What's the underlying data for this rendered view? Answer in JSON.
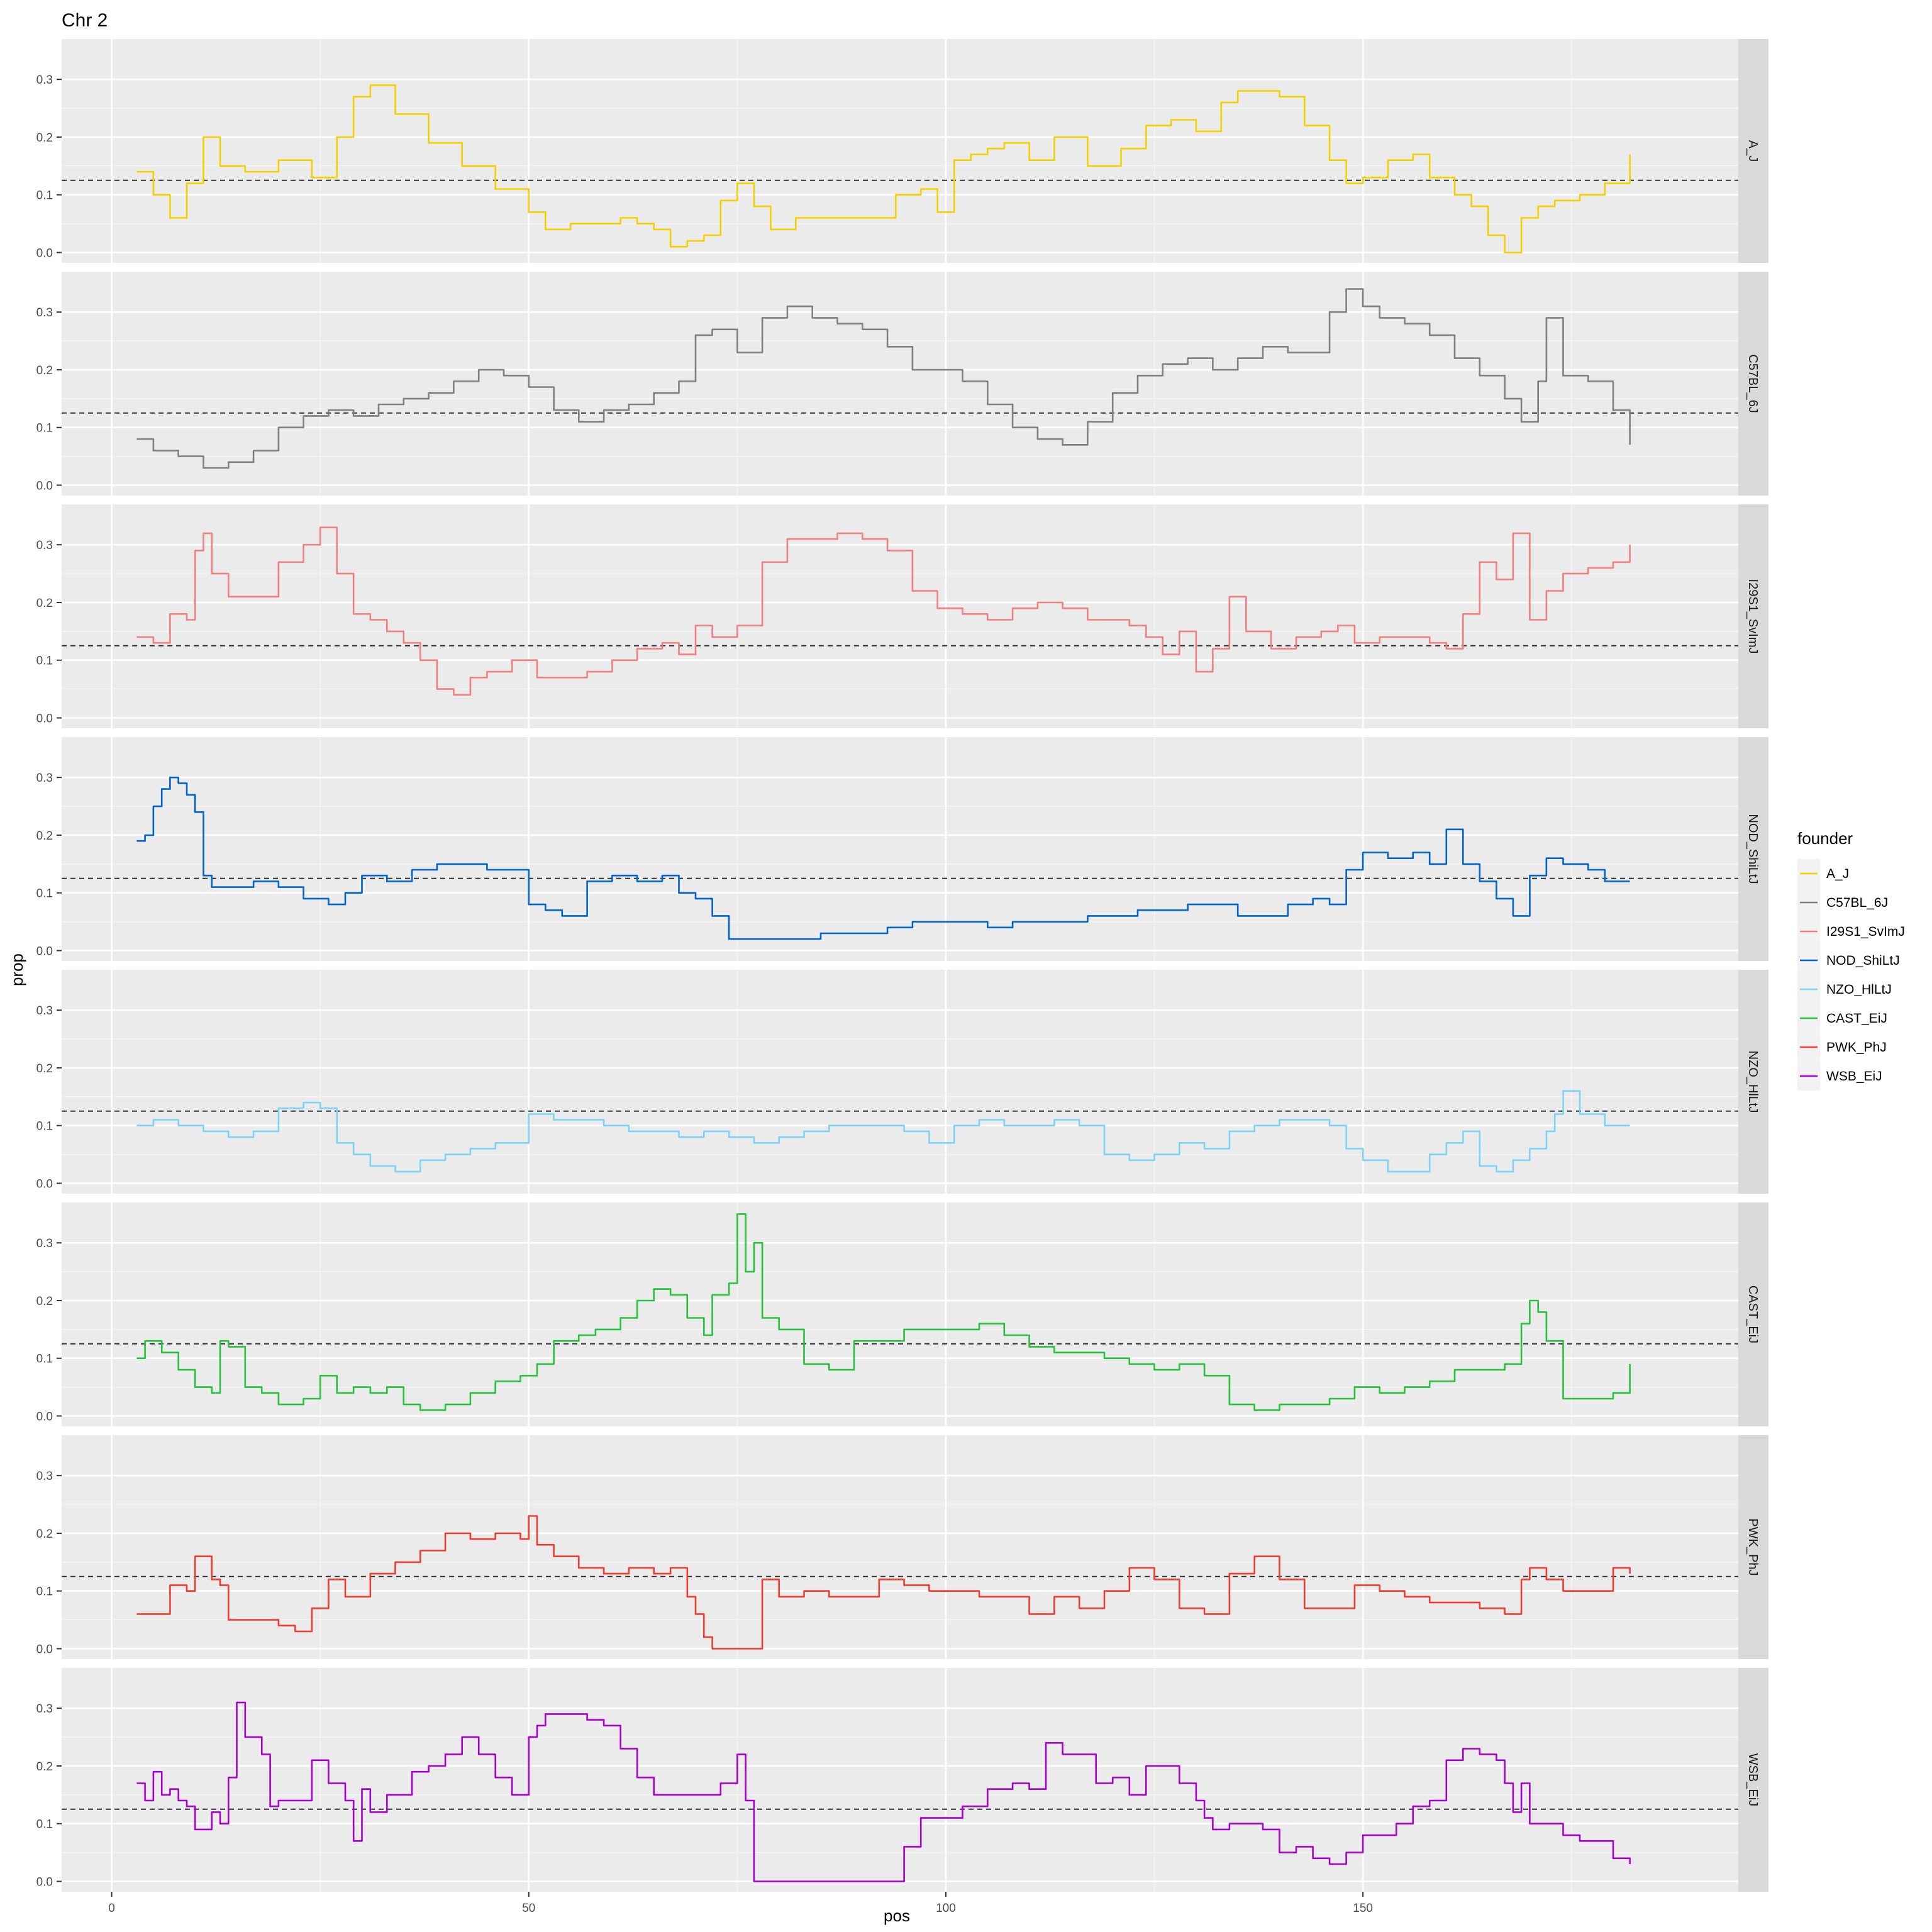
{
  "chart_data": {
    "type": "line",
    "title": "Chr 2",
    "xlabel": "pos",
    "ylabel": "prop",
    "xlim": [
      -6,
      195
    ],
    "ylim": [
      -0.018,
      0.37
    ],
    "x_ticks": [
      0,
      50,
      100,
      150
    ],
    "y_ticks": [
      0.0,
      0.1,
      0.2,
      0.3
    ],
    "x_tick_labels": [
      "0",
      "50",
      "100",
      "150"
    ],
    "y_tick_labels": [
      "0.0",
      "0.1",
      "0.2",
      "0.3"
    ],
    "reference_line": 0.125,
    "grid": true,
    "legend": {
      "title": "founder",
      "placement": "right"
    },
    "facet_layout": "rows",
    "series": [
      {
        "name": "A_J",
        "color": "#F5D000",
        "x": [
          3,
          5,
          7,
          9,
          11,
          13,
          16,
          20,
          24,
          27,
          29,
          31,
          34,
          38,
          42,
          46,
          50,
          52,
          55,
          58,
          61,
          63,
          65,
          67,
          69,
          71,
          73,
          75,
          77,
          79,
          82,
          86,
          90,
          94,
          97,
          99,
          101,
          103,
          105,
          107,
          110,
          113,
          117,
          121,
          124,
          127,
          130,
          133,
          135,
          137,
          140,
          143,
          146,
          148,
          150,
          153,
          156,
          158,
          161,
          163,
          165,
          167,
          169,
          171,
          173,
          176,
          179,
          182
        ],
        "y": [
          0.14,
          0.1,
          0.06,
          0.12,
          0.2,
          0.15,
          0.14,
          0.16,
          0.13,
          0.2,
          0.27,
          0.29,
          0.24,
          0.19,
          0.15,
          0.11,
          0.07,
          0.04,
          0.05,
          0.05,
          0.06,
          0.05,
          0.04,
          0.01,
          0.02,
          0.03,
          0.09,
          0.12,
          0.08,
          0.04,
          0.06,
          0.06,
          0.06,
          0.1,
          0.11,
          0.07,
          0.16,
          0.17,
          0.18,
          0.19,
          0.16,
          0.2,
          0.15,
          0.18,
          0.22,
          0.23,
          0.21,
          0.26,
          0.28,
          0.28,
          0.27,
          0.22,
          0.16,
          0.12,
          0.13,
          0.16,
          0.17,
          0.13,
          0.1,
          0.08,
          0.03,
          0.0,
          0.06,
          0.08,
          0.09,
          0.1,
          0.12,
          0.17
        ]
      },
      {
        "name": "C57BL_6J",
        "color": "#808080",
        "x": [
          3,
          5,
          8,
          11,
          14,
          17,
          20,
          23,
          26,
          29,
          32,
          35,
          38,
          41,
          44,
          47,
          50,
          53,
          56,
          59,
          62,
          65,
          68,
          70,
          72,
          75,
          78,
          81,
          84,
          87,
          90,
          93,
          96,
          99,
          102,
          105,
          108,
          111,
          114,
          117,
          120,
          123,
          126,
          129,
          132,
          135,
          138,
          141,
          144,
          146,
          148,
          150,
          152,
          155,
          158,
          161,
          164,
          167,
          169,
          171,
          172,
          174,
          177,
          180,
          182
        ],
        "y": [
          0.08,
          0.06,
          0.05,
          0.03,
          0.04,
          0.06,
          0.1,
          0.12,
          0.13,
          0.12,
          0.14,
          0.15,
          0.16,
          0.18,
          0.2,
          0.19,
          0.17,
          0.13,
          0.11,
          0.13,
          0.14,
          0.16,
          0.18,
          0.26,
          0.27,
          0.23,
          0.29,
          0.31,
          0.29,
          0.28,
          0.27,
          0.24,
          0.2,
          0.2,
          0.18,
          0.14,
          0.1,
          0.08,
          0.07,
          0.11,
          0.16,
          0.19,
          0.21,
          0.22,
          0.2,
          0.22,
          0.24,
          0.23,
          0.23,
          0.3,
          0.34,
          0.31,
          0.29,
          0.28,
          0.26,
          0.22,
          0.19,
          0.15,
          0.11,
          0.18,
          0.29,
          0.19,
          0.18,
          0.13,
          0.07
        ]
      },
      {
        "name": "I29S1_SvImJ",
        "color": "#F07F7F",
        "x": [
          3,
          5,
          7,
          9,
          10,
          11,
          12,
          14,
          17,
          20,
          23,
          25,
          27,
          29,
          31,
          33,
          35,
          37,
          39,
          41,
          43,
          45,
          48,
          51,
          54,
          57,
          60,
          63,
          66,
          68,
          70,
          72,
          75,
          78,
          81,
          84,
          87,
          90,
          93,
          96,
          99,
          102,
          105,
          108,
          111,
          114,
          117,
          120,
          122,
          124,
          126,
          128,
          130,
          132,
          134,
          136,
          139,
          142,
          145,
          147,
          149,
          152,
          155,
          158,
          160,
          162,
          164,
          166,
          168,
          170,
          172,
          174,
          177,
          180,
          182
        ],
        "y": [
          0.14,
          0.13,
          0.18,
          0.17,
          0.29,
          0.32,
          0.25,
          0.21,
          0.21,
          0.27,
          0.3,
          0.33,
          0.25,
          0.18,
          0.17,
          0.15,
          0.13,
          0.1,
          0.05,
          0.04,
          0.07,
          0.08,
          0.1,
          0.07,
          0.07,
          0.08,
          0.1,
          0.12,
          0.13,
          0.11,
          0.16,
          0.14,
          0.16,
          0.27,
          0.31,
          0.31,
          0.32,
          0.31,
          0.29,
          0.22,
          0.19,
          0.18,
          0.17,
          0.19,
          0.2,
          0.19,
          0.17,
          0.17,
          0.16,
          0.14,
          0.11,
          0.15,
          0.08,
          0.12,
          0.21,
          0.15,
          0.12,
          0.14,
          0.15,
          0.16,
          0.13,
          0.14,
          0.14,
          0.13,
          0.12,
          0.18,
          0.27,
          0.24,
          0.32,
          0.17,
          0.22,
          0.25,
          0.26,
          0.27,
          0.3
        ]
      },
      {
        "name": "NOD_ShiLtJ",
        "color": "#0064C9",
        "x": [
          3,
          4,
          5,
          6,
          7,
          8,
          9,
          10,
          11,
          12,
          14,
          17,
          20,
          23,
          26,
          28,
          30,
          33,
          36,
          39,
          42,
          45,
          48,
          50,
          52,
          54,
          57,
          60,
          63,
          66,
          68,
          70,
          72,
          74,
          76,
          78,
          81,
          85,
          89,
          93,
          96,
          99,
          102,
          105,
          108,
          111,
          114,
          117,
          120,
          123,
          126,
          129,
          132,
          135,
          138,
          141,
          144,
          146,
          148,
          150,
          153,
          156,
          158,
          160,
          162,
          164,
          166,
          168,
          170,
          172,
          174,
          177,
          179,
          182
        ],
        "y": [
          0.19,
          0.2,
          0.25,
          0.28,
          0.3,
          0.29,
          0.27,
          0.24,
          0.13,
          0.11,
          0.11,
          0.12,
          0.11,
          0.09,
          0.08,
          0.1,
          0.13,
          0.12,
          0.14,
          0.15,
          0.15,
          0.14,
          0.14,
          0.08,
          0.07,
          0.06,
          0.12,
          0.13,
          0.12,
          0.13,
          0.1,
          0.09,
          0.06,
          0.02,
          0.02,
          0.02,
          0.02,
          0.03,
          0.03,
          0.04,
          0.05,
          0.05,
          0.05,
          0.04,
          0.05,
          0.05,
          0.05,
          0.06,
          0.06,
          0.07,
          0.07,
          0.08,
          0.08,
          0.06,
          0.06,
          0.08,
          0.09,
          0.08,
          0.14,
          0.17,
          0.16,
          0.17,
          0.15,
          0.21,
          0.15,
          0.12,
          0.09,
          0.06,
          0.13,
          0.16,
          0.15,
          0.14,
          0.12,
          0.12
        ]
      },
      {
        "name": "NZO_HlLtJ",
        "color": "#7DD3F5",
        "x": [
          3,
          5,
          8,
          11,
          14,
          17,
          20,
          23,
          25,
          27,
          29,
          31,
          34,
          37,
          40,
          43,
          46,
          49,
          50,
          51,
          53,
          56,
          59,
          62,
          65,
          68,
          71,
          74,
          77,
          80,
          83,
          86,
          89,
          92,
          95,
          98,
          101,
          104,
          107,
          110,
          113,
          116,
          119,
          122,
          125,
          128,
          131,
          134,
          137,
          140,
          143,
          146,
          148,
          150,
          153,
          156,
          158,
          160,
          162,
          164,
          166,
          168,
          170,
          172,
          173,
          174,
          176,
          179,
          182
        ],
        "y": [
          0.1,
          0.11,
          0.1,
          0.09,
          0.08,
          0.09,
          0.13,
          0.14,
          0.13,
          0.07,
          0.05,
          0.03,
          0.02,
          0.04,
          0.05,
          0.06,
          0.07,
          0.07,
          0.12,
          0.12,
          0.11,
          0.11,
          0.1,
          0.09,
          0.09,
          0.08,
          0.09,
          0.08,
          0.07,
          0.08,
          0.09,
          0.1,
          0.1,
          0.1,
          0.09,
          0.07,
          0.1,
          0.11,
          0.1,
          0.1,
          0.11,
          0.1,
          0.05,
          0.04,
          0.05,
          0.07,
          0.06,
          0.09,
          0.1,
          0.11,
          0.11,
          0.1,
          0.06,
          0.04,
          0.02,
          0.02,
          0.05,
          0.07,
          0.09,
          0.03,
          0.02,
          0.04,
          0.06,
          0.09,
          0.12,
          0.16,
          0.12,
          0.1,
          0.1
        ]
      },
      {
        "name": "CAST_EiJ",
        "color": "#26C23C",
        "x": [
          3,
          4,
          6,
          8,
          10,
          12,
          13,
          14,
          16,
          18,
          20,
          23,
          25,
          27,
          29,
          31,
          33,
          35,
          37,
          40,
          43,
          46,
          49,
          51,
          53,
          56,
          58,
          61,
          63,
          65,
          67,
          69,
          71,
          72,
          74,
          75,
          76,
          77,
          78,
          80,
          83,
          86,
          89,
          92,
          95,
          98,
          101,
          104,
          107,
          110,
          113,
          116,
          119,
          122,
          125,
          128,
          131,
          134,
          137,
          140,
          143,
          146,
          149,
          152,
          155,
          158,
          161,
          164,
          167,
          169,
          170,
          171,
          172,
          174,
          177,
          180,
          182
        ],
        "y": [
          0.1,
          0.13,
          0.11,
          0.08,
          0.05,
          0.04,
          0.13,
          0.12,
          0.05,
          0.04,
          0.02,
          0.03,
          0.07,
          0.04,
          0.05,
          0.04,
          0.05,
          0.02,
          0.01,
          0.02,
          0.04,
          0.06,
          0.07,
          0.09,
          0.13,
          0.14,
          0.15,
          0.17,
          0.2,
          0.22,
          0.21,
          0.17,
          0.14,
          0.21,
          0.23,
          0.35,
          0.25,
          0.3,
          0.17,
          0.15,
          0.09,
          0.08,
          0.13,
          0.13,
          0.15,
          0.15,
          0.15,
          0.16,
          0.14,
          0.12,
          0.11,
          0.11,
          0.1,
          0.09,
          0.08,
          0.09,
          0.07,
          0.02,
          0.01,
          0.02,
          0.02,
          0.03,
          0.05,
          0.04,
          0.05,
          0.06,
          0.08,
          0.08,
          0.09,
          0.16,
          0.2,
          0.18,
          0.13,
          0.03,
          0.03,
          0.04,
          0.09
        ]
      },
      {
        "name": "PWK_PhJ",
        "color": "#F03C2E",
        "x": [
          3,
          5,
          7,
          9,
          10,
          12,
          13,
          14,
          16,
          18,
          20,
          22,
          24,
          26,
          28,
          31,
          34,
          37,
          40,
          43,
          46,
          49,
          50,
          51,
          53,
          56,
          59,
          62,
          65,
          67,
          69,
          70,
          71,
          72,
          74,
          76,
          78,
          80,
          83,
          86,
          89,
          92,
          95,
          98,
          101,
          104,
          107,
          110,
          113,
          116,
          119,
          122,
          125,
          128,
          131,
          134,
          137,
          140,
          143,
          146,
          149,
          152,
          155,
          158,
          161,
          164,
          167,
          169,
          170,
          172,
          174,
          177,
          180,
          182
        ],
        "y": [
          0.06,
          0.06,
          0.11,
          0.1,
          0.16,
          0.12,
          0.11,
          0.05,
          0.05,
          0.05,
          0.04,
          0.03,
          0.07,
          0.12,
          0.09,
          0.13,
          0.15,
          0.17,
          0.2,
          0.19,
          0.2,
          0.19,
          0.23,
          0.18,
          0.16,
          0.14,
          0.13,
          0.14,
          0.13,
          0.14,
          0.09,
          0.06,
          0.02,
          0.0,
          0.0,
          0.0,
          0.12,
          0.09,
          0.1,
          0.09,
          0.09,
          0.12,
          0.11,
          0.1,
          0.1,
          0.09,
          0.09,
          0.06,
          0.09,
          0.07,
          0.1,
          0.14,
          0.12,
          0.07,
          0.06,
          0.13,
          0.16,
          0.12,
          0.07,
          0.07,
          0.11,
          0.1,
          0.09,
          0.08,
          0.08,
          0.07,
          0.06,
          0.12,
          0.14,
          0.12,
          0.1,
          0.1,
          0.14,
          0.13
        ]
      },
      {
        "name": "WSB_EiJ",
        "color": "#A800D0",
        "x": [
          3,
          4,
          5,
          6,
          7,
          8,
          9,
          10,
          12,
          13,
          14,
          15,
          16,
          17,
          18,
          19,
          20,
          22,
          24,
          26,
          28,
          29,
          30,
          31,
          33,
          36,
          38,
          40,
          42,
          44,
          46,
          48,
          50,
          51,
          52,
          54,
          57,
          59,
          61,
          63,
          65,
          68,
          71,
          73,
          75,
          76,
          77,
          80,
          84,
          88,
          91,
          93,
          95,
          97,
          99,
          102,
          105,
          108,
          110,
          112,
          114,
          116,
          118,
          120,
          122,
          124,
          126,
          128,
          130,
          131,
          132,
          134,
          136,
          138,
          140,
          142,
          144,
          146,
          148,
          150,
          152,
          154,
          156,
          158,
          160,
          162,
          164,
          166,
          167,
          168,
          169,
          170,
          172,
          174,
          176,
          178,
          180,
          182
        ],
        "y": [
          0.17,
          0.14,
          0.19,
          0.15,
          0.16,
          0.14,
          0.13,
          0.09,
          0.12,
          0.1,
          0.18,
          0.31,
          0.25,
          0.25,
          0.22,
          0.13,
          0.14,
          0.14,
          0.21,
          0.17,
          0.14,
          0.07,
          0.16,
          0.12,
          0.15,
          0.19,
          0.2,
          0.22,
          0.25,
          0.22,
          0.18,
          0.15,
          0.25,
          0.27,
          0.29,
          0.29,
          0.28,
          0.27,
          0.23,
          0.18,
          0.15,
          0.15,
          0.15,
          0.17,
          0.22,
          0.14,
          0.0,
          0.0,
          0.0,
          0.0,
          0.0,
          0.0,
          0.06,
          0.11,
          0.11,
          0.13,
          0.16,
          0.17,
          0.16,
          0.24,
          0.22,
          0.22,
          0.17,
          0.18,
          0.15,
          0.2,
          0.2,
          0.17,
          0.14,
          0.11,
          0.09,
          0.1,
          0.1,
          0.09,
          0.05,
          0.06,
          0.04,
          0.03,
          0.05,
          0.08,
          0.08,
          0.1,
          0.13,
          0.14,
          0.21,
          0.23,
          0.22,
          0.21,
          0.17,
          0.12,
          0.17,
          0.1,
          0.1,
          0.08,
          0.07,
          0.07,
          0.04,
          0.03
        ]
      }
    ]
  }
}
